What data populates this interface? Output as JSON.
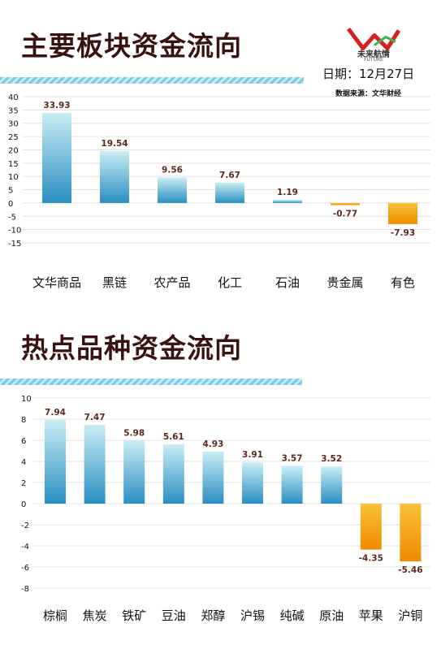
{
  "header": {
    "title1": "主要板块资金流向",
    "title2": "热点品种资金流向",
    "date": "日期：12月27日",
    "source": "数据来源：文华财经",
    "logo_text": "未来航情",
    "logo_sub": "FUTURE"
  },
  "colors": {
    "positive_top": "#c9eef4",
    "positive_bottom": "#2a8ec2",
    "negative_top": "#f7c23a",
    "negative_bottom": "#f08a00",
    "title": "#3a1212"
  },
  "chart_data": [
    {
      "type": "bar",
      "title": "主要板块资金流向",
      "categories": [
        "文华商品",
        "黑链",
        "农产品",
        "化工",
        "石油",
        "贵金属",
        "有色"
      ],
      "values": [
        33.93,
        19.54,
        9.56,
        7.67,
        1.19,
        -0.77,
        -7.93
      ],
      "ylim": [
        -15,
        40
      ],
      "yticks": [
        40,
        35,
        30,
        25,
        20,
        15,
        10,
        5,
        0,
        -5,
        -10,
        -15
      ],
      "grid": true
    },
    {
      "type": "bar",
      "title": "热点品种资金流向",
      "categories": [
        "棕榈",
        "焦炭",
        "铁矿",
        "豆油",
        "郑醇",
        "沪锡",
        "纯碱",
        "原油",
        "苹果",
        "沪铜"
      ],
      "values": [
        7.94,
        7.47,
        5.98,
        5.61,
        4.93,
        3.91,
        3.57,
        3.52,
        -4.35,
        -5.46
      ],
      "ylim": [
        -8,
        10
      ],
      "yticks": [
        10,
        8,
        6,
        4,
        2,
        0,
        -2,
        -4,
        -6,
        -8
      ],
      "grid": true
    }
  ]
}
